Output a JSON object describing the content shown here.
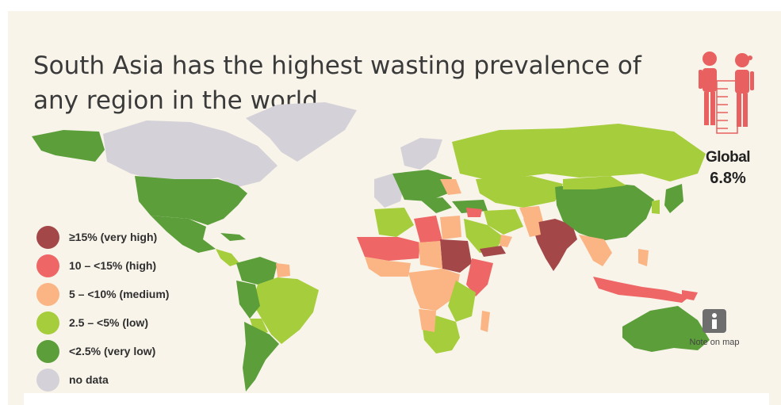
{
  "title": "South Asia has the highest wasting prevalence of any region in the world",
  "global": {
    "label": "Global",
    "value": "6.8%",
    "icon": "children-height-chart-icon"
  },
  "note": {
    "label": "Note on map",
    "icon": "info-icon"
  },
  "legend": [
    {
      "label": "≥15% (very high)",
      "color": "#a34749"
    },
    {
      "label": "10 – <15% (high)",
      "color": "#ee6665"
    },
    {
      "label": "5 – <10% (medium)",
      "color": "#fbb584"
    },
    {
      "label": "2.5 – <5% (low)",
      "color": "#a6cd3b"
    },
    {
      "label": "<2.5% (very low)",
      "color": "#5b9e3a"
    },
    {
      "label": "no data",
      "color": "#d4d2d8"
    }
  ],
  "colors": {
    "background": "#f8f4ea",
    "title": "#3a3a3a",
    "global_icon": "#e8605f",
    "info_button": "#6e6e6e"
  }
}
